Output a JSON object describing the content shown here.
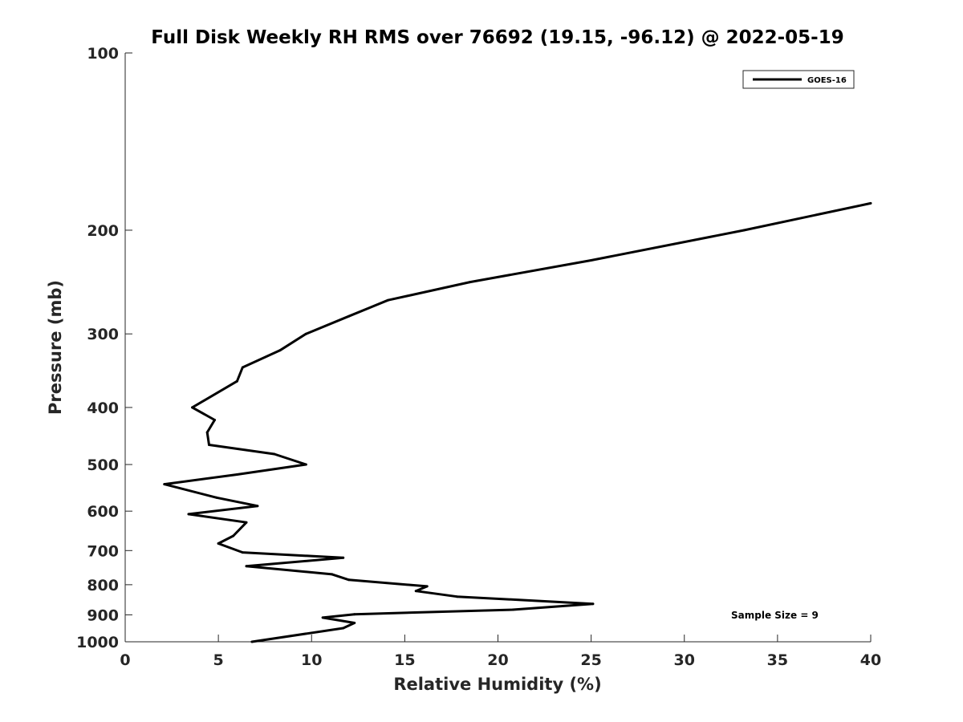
{
  "chart_data": {
    "type": "line",
    "title": "Full Disk Weekly RH RMS over 76692 (19.15, -96.12) @ 2022-05-19",
    "xlabel": "Relative Humidity (%)",
    "ylabel": "Pressure (mb)",
    "xlim": [
      0,
      40
    ],
    "ylim": [
      100,
      1000
    ],
    "y_scale": "log",
    "y_reversed": true,
    "x_ticks": [
      0,
      5,
      10,
      15,
      20,
      25,
      30,
      35,
      40
    ],
    "y_ticks": [
      100,
      200,
      300,
      400,
      500,
      600,
      700,
      800,
      900,
      1000
    ],
    "grid": false,
    "legend_position": "top-right",
    "annotation": "Sample Size = 9",
    "series": [
      {
        "name": "GOES-16",
        "color": "#000000",
        "points": [
          [
            40.0,
            180
          ],
          [
            33.2,
            200
          ],
          [
            25.0,
            225
          ],
          [
            18.5,
            245
          ],
          [
            14.1,
            263
          ],
          [
            12.0,
            280
          ],
          [
            9.7,
            300
          ],
          [
            8.3,
            320
          ],
          [
            6.3,
            342
          ],
          [
            6.0,
            361
          ],
          [
            3.6,
            400
          ],
          [
            4.8,
            420
          ],
          [
            4.4,
            441
          ],
          [
            4.5,
            463
          ],
          [
            8.0,
            480
          ],
          [
            9.7,
            500
          ],
          [
            6.0,
            520
          ],
          [
            2.1,
            540
          ],
          [
            4.9,
            569
          ],
          [
            7.1,
            588
          ],
          [
            3.4,
            607
          ],
          [
            6.5,
            627
          ],
          [
            5.8,
            661
          ],
          [
            5.0,
            681
          ],
          [
            6.3,
            705
          ],
          [
            11.7,
            720
          ],
          [
            6.5,
            744
          ],
          [
            11.1,
            768
          ],
          [
            12.0,
            785
          ],
          [
            16.2,
            805
          ],
          [
            15.6,
            820
          ],
          [
            17.8,
            838
          ],
          [
            25.1,
            862
          ],
          [
            20.8,
            882
          ],
          [
            12.3,
            898
          ],
          [
            10.6,
            910
          ],
          [
            12.3,
            929
          ],
          [
            11.7,
            948
          ],
          [
            6.8,
            1000
          ]
        ]
      }
    ]
  }
}
